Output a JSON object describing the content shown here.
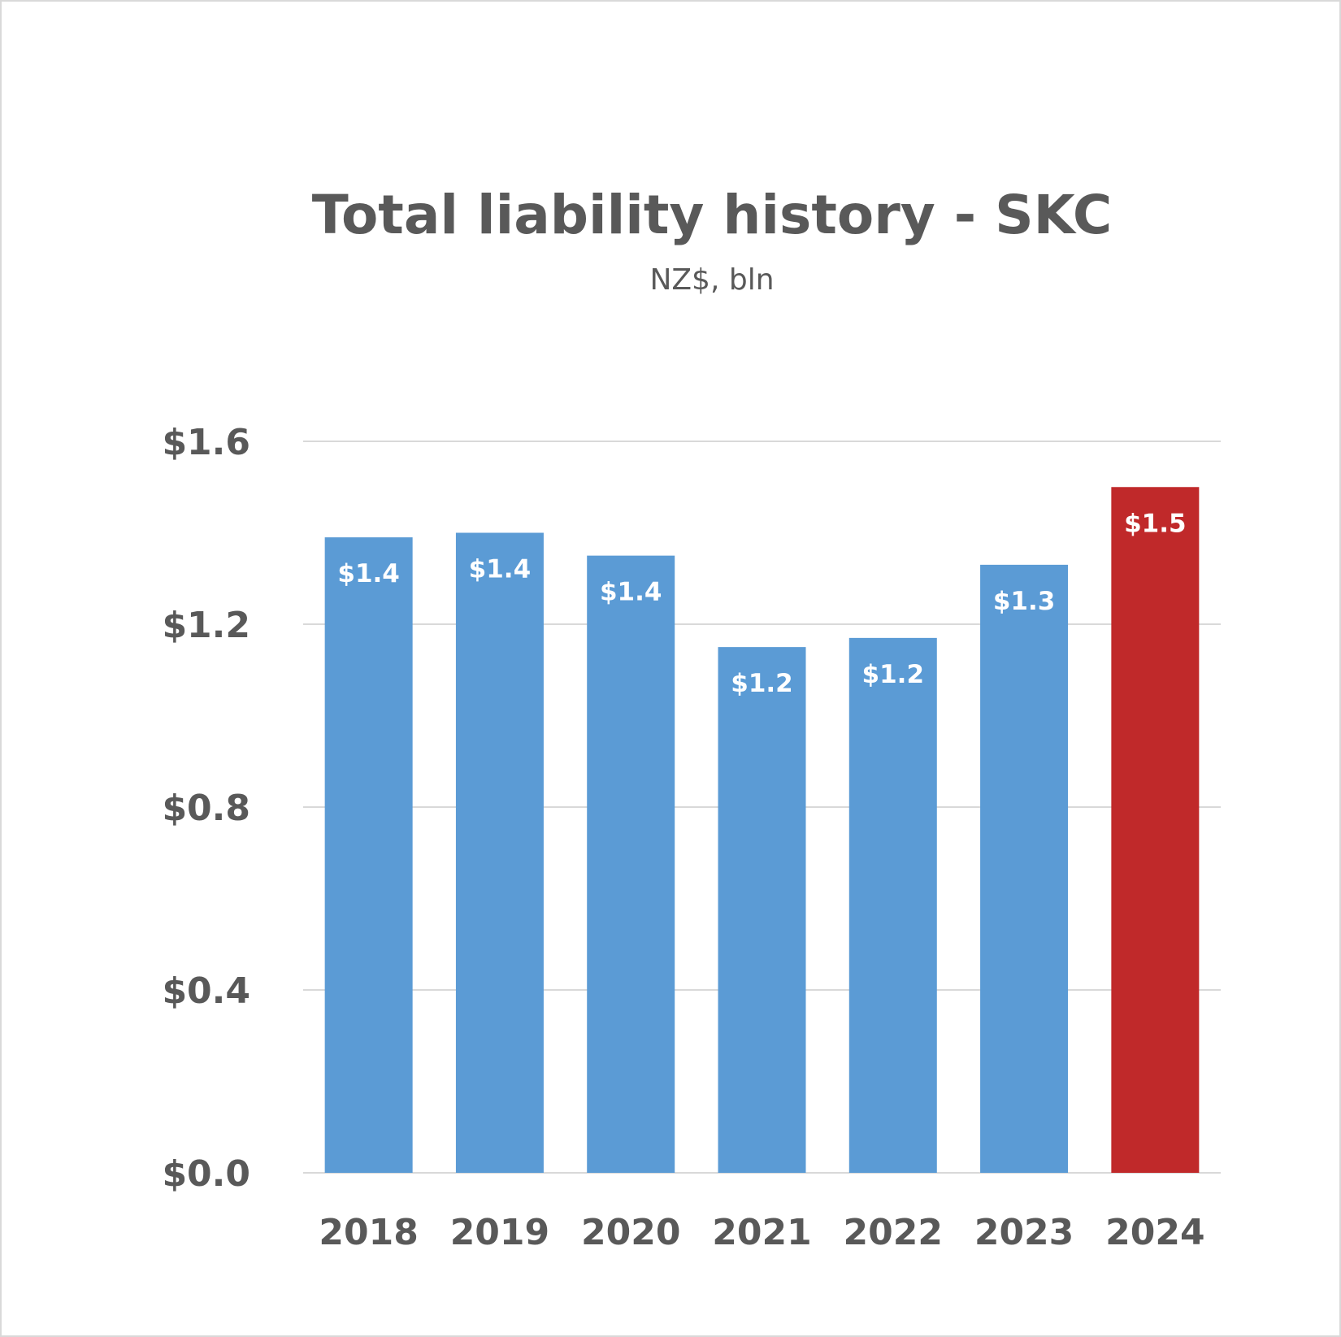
{
  "chart_data": {
    "type": "bar",
    "title": "Total liability history - SKC",
    "subtitle": "NZ$, bln",
    "xlabel": "",
    "ylabel": "",
    "categories": [
      "2018",
      "2019",
      "2020",
      "2021",
      "2022",
      "2023",
      "2024"
    ],
    "values": [
      1.39,
      1.4,
      1.35,
      1.15,
      1.17,
      1.33,
      1.5
    ],
    "data_labels": [
      "$1.4",
      "$1.4",
      "$1.4",
      "$1.2",
      "$1.2",
      "$1.3",
      "$1.5"
    ],
    "ylim": [
      0,
      1.6
    ],
    "yticks": [
      0,
      0.4,
      0.8,
      1.2,
      1.6
    ],
    "ytick_labels": [
      "$0.0",
      "$0.4",
      "$0.8",
      "$1.2",
      "$1.6"
    ],
    "grid": true,
    "legend": "none",
    "bar_colors": [
      "#5b9bd5",
      "#5b9bd5",
      "#5b9bd5",
      "#5b9bd5",
      "#5b9bd5",
      "#5b9bd5",
      "#c0292a"
    ]
  }
}
